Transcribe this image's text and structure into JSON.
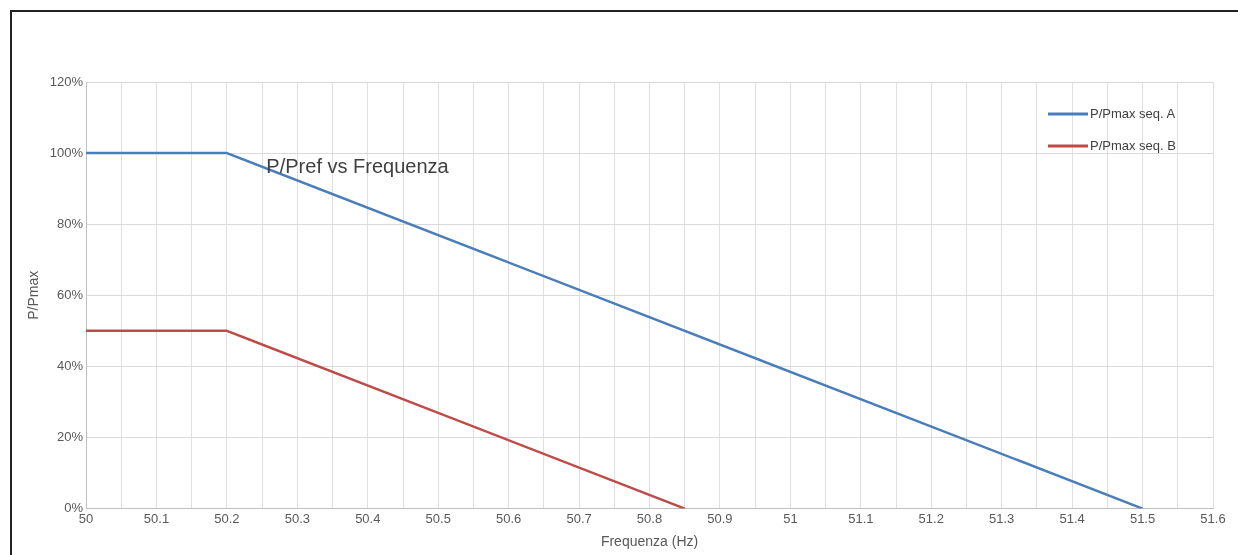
{
  "chart_data": {
    "type": "line",
    "title": "P/Pref vs Frequenza",
    "xlabel": "Frequenza (Hz)",
    "ylabel": "P/Pmax",
    "series": [
      {
        "name": "P/Pmax seq. A",
        "color": "#4a7ebb",
        "x": [
          50,
          50.2,
          51.5
        ],
        "values": [
          100,
          100,
          0
        ]
      },
      {
        "name": "P/Pmax seq. B",
        "color": "#be4b48",
        "x": [
          50,
          50.2,
          50.85
        ],
        "values": [
          50,
          50,
          0
        ]
      }
    ],
    "xlim": [
      50,
      51.6
    ],
    "xticks": [
      50,
      {
        "value": 50.05,
        "label": null
      },
      50.1,
      {
        "value": 50.15,
        "label": null
      },
      50.2,
      {
        "value": 50.25,
        "label": null
      },
      50.3,
      {
        "value": 50.35,
        "label": null
      },
      50.4,
      {
        "value": 50.45,
        "label": null
      },
      50.5,
      {
        "value": 50.55,
        "label": null
      },
      50.6,
      {
        "value": 50.65,
        "label": null
      },
      50.7,
      {
        "value": 50.75,
        "label": null
      },
      50.8,
      {
        "value": 50.85,
        "label": null
      },
      50.9,
      {
        "value": 50.95,
        "label": null
      },
      51,
      {
        "value": 51.05,
        "label": null
      },
      51.1,
      {
        "value": 51.15,
        "label": null
      },
      51.2,
      {
        "value": 51.25,
        "label": null
      },
      51.3,
      {
        "value": 51.35,
        "label": null
      },
      51.4,
      {
        "value": 51.45,
        "label": null
      },
      51.5,
      {
        "value": 51.55,
        "label": null
      },
      51.6
    ],
    "ylim": [
      0,
      120
    ],
    "yticks": [
      {
        "value": 0,
        "label": "0%"
      },
      {
        "value": 20,
        "label": "20%"
      },
      {
        "value": 40,
        "label": "40%"
      },
      {
        "value": 60,
        "label": "60%"
      },
      {
        "value": 80,
        "label": "80%"
      },
      {
        "value": 100,
        "label": "100%"
      },
      {
        "value": 120,
        "label": "120%"
      }
    ],
    "grid": true,
    "legend": "top right",
    "marker": "none",
    "line_style": "solid"
  }
}
